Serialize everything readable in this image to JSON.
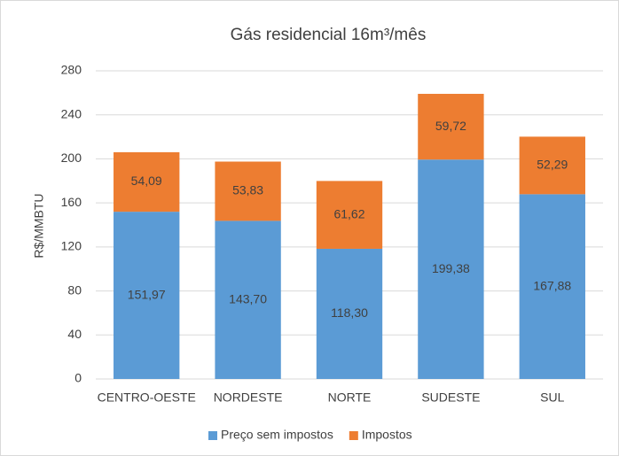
{
  "chart_data": {
    "type": "stacked_bar",
    "title": "Gás residencial 16m³/mês",
    "y_label": "R$/MMBTU",
    "categories": [
      "CENTRO-OESTE",
      "NORDESTE",
      "NORTE",
      "SUDESTE",
      "SUL"
    ],
    "series": [
      {
        "name": "Preço sem impostos",
        "color": "#5b9bd5",
        "values": [
          151.97,
          143.7,
          118.3,
          199.38,
          167.88
        ],
        "value_labels": [
          "151,97",
          "143,70",
          "118,30",
          "199,38",
          "167,88"
        ]
      },
      {
        "name": "Impostos",
        "color": "#ed7d31",
        "values": [
          54.09,
          53.83,
          61.62,
          59.72,
          52.29
        ],
        "value_labels": [
          "54,09",
          "53,83",
          "61,62",
          "59,72",
          "52,29"
        ]
      }
    ],
    "ylim": [
      0,
      280
    ],
    "yticks": [
      0,
      40,
      80,
      120,
      160,
      200,
      240,
      280
    ],
    "grid": true,
    "legend": "bottom"
  }
}
